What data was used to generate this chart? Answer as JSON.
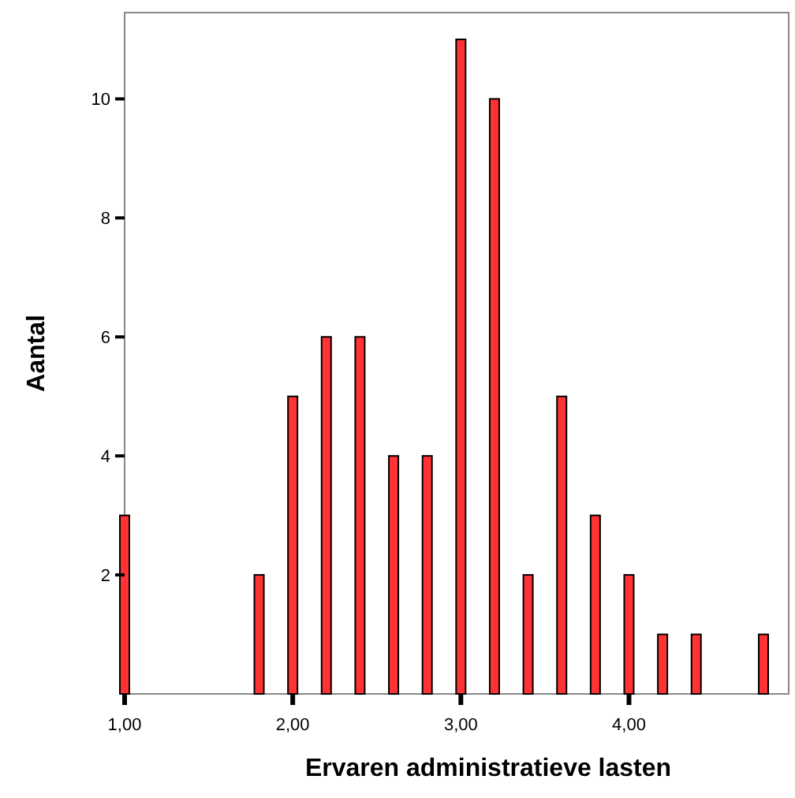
{
  "chart_data": {
    "type": "bar",
    "xlabel": "Ervaren administratieve lasten",
    "ylabel": "Aantal",
    "x": [
      1.0,
      1.8,
      2.0,
      2.2,
      2.4,
      2.6,
      2.8,
      3.0,
      3.2,
      3.4,
      3.6,
      3.8,
      4.0,
      4.2,
      4.4,
      4.8
    ],
    "values": [
      3,
      2,
      5,
      6,
      6,
      4,
      4,
      11,
      10,
      2,
      5,
      3,
      2,
      1,
      1,
      1
    ],
    "color": "#ff3333",
    "xlim": [
      1,
      4.95
    ],
    "xticks": [
      {
        "value": 1,
        "label": "1,00"
      },
      {
        "value": 2,
        "label": "2,00"
      },
      {
        "value": 3,
        "label": "3,00"
      },
      {
        "value": 4,
        "label": "4,00"
      }
    ],
    "ylim": [
      0,
      11.45
    ],
    "yticks": [
      2,
      4,
      6,
      8,
      10
    ],
    "grid": false
  }
}
